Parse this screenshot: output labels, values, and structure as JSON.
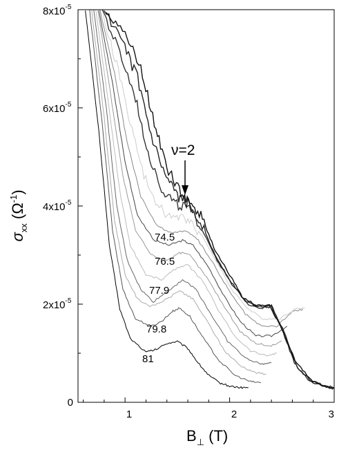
{
  "chart_data": {
    "type": "line",
    "xlabel": "B",
    "xlabel_sub": "⊥",
    "xlabel_unit": " (T)",
    "ylabel": "σ",
    "ylabel_sub": "xx",
    "ylabel_unit_open": " (Ω",
    "ylabel_unit_sup": "-1",
    "ylabel_unit_close": ")",
    "xlim": [
      0.55,
      3.0
    ],
    "ylim": [
      0,
      8e-05
    ],
    "x_ticks": [
      {
        "value": 1,
        "label": "1"
      },
      {
        "value": 2,
        "label": "2"
      },
      {
        "value": 3,
        "label": "3"
      }
    ],
    "y_ticks": [
      {
        "value": 0,
        "label": "0",
        "exp": ""
      },
      {
        "value": 2e-05,
        "label": "2x10",
        "exp": "-5"
      },
      {
        "value": 4e-05,
        "label": "4x10",
        "exp": "-5"
      },
      {
        "value": 6e-05,
        "label": "6x10",
        "exp": "-5"
      },
      {
        "value": 8e-05,
        "label": "8x10",
        "exp": "-5"
      }
    ],
    "annotation": {
      "text": "ν=2",
      "x": 1.55,
      "y": 4.1e-05
    },
    "curve_labels": [
      "74.5",
      "76.5",
      "77.9",
      "79.8",
      "81"
    ],
    "series": [
      {
        "label": "81",
        "color": "#000000",
        "points": [
          [
            0.62,
            8e-05
          ],
          [
            0.75,
            5.5e-05
          ],
          [
            0.85,
            3.2e-05
          ],
          [
            0.95,
            1.9e-05
          ],
          [
            1.05,
            1.3e-05
          ],
          [
            1.2,
            1.02e-05
          ],
          [
            1.3,
            1.08e-05
          ],
          [
            1.4,
            1.2e-05
          ],
          [
            1.5,
            1.24e-05
          ],
          [
            1.6,
            1.1e-05
          ],
          [
            1.7,
            8e-06
          ],
          [
            1.8,
            5.5e-06
          ],
          [
            1.9,
            4e-06
          ],
          [
            2.0,
            3.3e-06
          ],
          [
            2.1,
            3e-06
          ],
          [
            2.18,
            3e-06
          ]
        ]
      },
      {
        "label": "79.8",
        "color": "#555555",
        "points": [
          [
            0.66,
            8e-05
          ],
          [
            0.78,
            5.7e-05
          ],
          [
            0.88,
            3.5e-05
          ],
          [
            0.98,
            2.3e-05
          ],
          [
            1.1,
            1.7e-05
          ],
          [
            1.25,
            1.55e-05
          ],
          [
            1.35,
            1.65e-05
          ],
          [
            1.45,
            1.85e-05
          ],
          [
            1.52,
            1.92e-05
          ],
          [
            1.62,
            1.75e-05
          ],
          [
            1.75,
            1.3e-05
          ],
          [
            1.9,
            8.5e-06
          ],
          [
            2.05,
            5.5e-06
          ],
          [
            2.2,
            4.2e-06
          ],
          [
            2.3,
            4e-06
          ]
        ]
      },
      {
        "label": "",
        "color": "#aaaaaa",
        "points": [
          [
            0.68,
            8e-05
          ],
          [
            0.8,
            5.8e-05
          ],
          [
            0.9,
            3.7e-05
          ],
          [
            1.0,
            2.6e-05
          ],
          [
            1.12,
            2.1e-05
          ],
          [
            1.25,
            1.95e-05
          ],
          [
            1.4,
            2.1e-05
          ],
          [
            1.52,
            2.28e-05
          ],
          [
            1.65,
            2.1e-05
          ],
          [
            1.8,
            1.6e-05
          ],
          [
            1.95,
            1.05e-05
          ],
          [
            2.1,
            7.5e-06
          ],
          [
            2.25,
            6e-06
          ],
          [
            2.35,
            5.8e-06
          ]
        ]
      },
      {
        "label": "77.9",
        "color": "#666666",
        "points": [
          [
            0.7,
            8e-05
          ],
          [
            0.82,
            6e-05
          ],
          [
            0.92,
            4e-05
          ],
          [
            1.02,
            2.9e-05
          ],
          [
            1.15,
            2.3e-05
          ],
          [
            1.27,
            2.05e-05
          ],
          [
            1.4,
            2.25e-05
          ],
          [
            1.55,
            2.5e-05
          ],
          [
            1.68,
            2.3e-05
          ],
          [
            1.82,
            1.8e-05
          ],
          [
            1.98,
            1.25e-05
          ],
          [
            2.15,
            9e-06
          ],
          [
            2.3,
            7.8e-06
          ],
          [
            2.4,
            8e-06
          ]
        ]
      },
      {
        "label": "",
        "color": "#bbbbbb",
        "points": [
          [
            0.72,
            8e-05
          ],
          [
            0.84,
            6.1e-05
          ],
          [
            0.95,
            4.3e-05
          ],
          [
            1.05,
            3.2e-05
          ],
          [
            1.2,
            2.6e-05
          ],
          [
            1.35,
            2.5e-05
          ],
          [
            1.5,
            2.75e-05
          ],
          [
            1.6,
            2.8e-05
          ],
          [
            1.75,
            2.45e-05
          ],
          [
            1.9,
            1.85e-05
          ],
          [
            2.05,
            1.35e-05
          ],
          [
            2.2,
            1.05e-05
          ],
          [
            2.35,
            9.5e-06
          ],
          [
            2.45,
            1e-05
          ]
        ]
      },
      {
        "label": "76.5",
        "color": "#999999",
        "points": [
          [
            0.74,
            8e-05
          ],
          [
            0.86,
            6.3e-05
          ],
          [
            0.98,
            4.6e-05
          ],
          [
            1.1,
            3.5e-05
          ],
          [
            1.25,
            3e-05
          ],
          [
            1.4,
            2.9e-05
          ],
          [
            1.52,
            3.05e-05
          ],
          [
            1.62,
            3e-05
          ],
          [
            1.78,
            2.55e-05
          ],
          [
            1.95,
            1.95e-05
          ],
          [
            2.1,
            1.45e-05
          ],
          [
            2.25,
            1.2e-05
          ],
          [
            2.4,
            1.15e-05
          ],
          [
            2.5,
            1.25e-05
          ]
        ]
      },
      {
        "label": "",
        "color": "#444444",
        "points": [
          [
            0.75,
            8e-05
          ],
          [
            0.88,
            6.5e-05
          ],
          [
            1.0,
            4.9e-05
          ],
          [
            1.12,
            3.8e-05
          ],
          [
            1.28,
            3.3e-05
          ],
          [
            1.42,
            3.2e-05
          ],
          [
            1.55,
            3.3e-05
          ],
          [
            1.65,
            3.2e-05
          ],
          [
            1.8,
            2.75e-05
          ],
          [
            1.95,
            2.15e-05
          ],
          [
            2.1,
            1.65e-05
          ],
          [
            2.25,
            1.35e-05
          ],
          [
            2.4,
            1.35e-05
          ],
          [
            2.55,
            1.55e-05
          ]
        ]
      },
      {
        "label": "74.5",
        "color": "#888888",
        "points": [
          [
            0.76,
            8e-05
          ],
          [
            0.9,
            6.7e-05
          ],
          [
            1.02,
            5.3e-05
          ],
          [
            1.15,
            4.2e-05
          ],
          [
            1.3,
            3.6e-05
          ],
          [
            1.45,
            3.45e-05
          ],
          [
            1.58,
            3.5e-05
          ],
          [
            1.7,
            3.3e-05
          ],
          [
            1.85,
            2.8e-05
          ],
          [
            2.0,
            2.25e-05
          ],
          [
            2.15,
            1.8e-05
          ],
          [
            2.3,
            1.55e-05
          ],
          [
            2.45,
            1.55e-05
          ],
          [
            2.6,
            1.85e-05
          ],
          [
            2.7,
            1.9e-05
          ]
        ]
      },
      {
        "label": "",
        "color": "#cccccc",
        "points": [
          [
            0.77,
            8e-05
          ],
          [
            0.92,
            6.9e-05
          ],
          [
            1.05,
            5.7e-05
          ],
          [
            1.18,
            4.6e-05
          ],
          [
            1.33,
            3.95e-05
          ],
          [
            1.48,
            3.75e-05
          ],
          [
            1.6,
            3.75e-05
          ],
          [
            1.72,
            3.45e-05
          ],
          [
            1.88,
            2.85e-05
          ],
          [
            2.02,
            2.3e-05
          ],
          [
            2.18,
            1.9e-05
          ],
          [
            2.32,
            1.7e-05
          ],
          [
            2.48,
            1.7e-05
          ],
          [
            2.62,
            1.9e-05
          ],
          [
            2.72,
            1.92e-05
          ]
        ]
      },
      {
        "label": "",
        "color": "#333333",
        "points": [
          [
            0.78,
            8e-05
          ],
          [
            0.95,
            7.1e-05
          ],
          [
            1.1,
            6.2e-05
          ],
          [
            1.22,
            5.1e-05
          ],
          [
            1.35,
            4.35e-05
          ],
          [
            1.48,
            4.05e-05
          ],
          [
            1.6,
            3.95e-05
          ],
          [
            1.72,
            3.6e-05
          ],
          [
            1.88,
            2.9e-05
          ],
          [
            2.02,
            2.4e-05
          ],
          [
            2.18,
            2e-05
          ],
          [
            2.3,
            1.92e-05
          ],
          [
            2.4,
            1.95e-05
          ],
          [
            2.5,
            1.5e-05
          ],
          [
            2.62,
            8e-06
          ],
          [
            2.75,
            4.5e-06
          ],
          [
            2.9,
            3.5e-06
          ],
          [
            3.0,
            3e-06
          ]
        ]
      },
      {
        "label": "",
        "color": "#222222",
        "points": [
          [
            0.8,
            8e-05
          ],
          [
            0.98,
            7.3e-05
          ],
          [
            1.12,
            6.6e-05
          ],
          [
            1.25,
            5.4e-05
          ],
          [
            1.38,
            4.6e-05
          ],
          [
            1.5,
            4.2e-05
          ],
          [
            1.6,
            4.05e-05
          ],
          [
            1.72,
            3.7e-05
          ],
          [
            1.86,
            3e-05
          ],
          [
            2.0,
            2.5e-05
          ],
          [
            2.15,
            2.05e-05
          ],
          [
            2.28,
            1.95e-05
          ],
          [
            2.4,
            1.97e-05
          ],
          [
            2.52,
            1.45e-05
          ],
          [
            2.65,
            7e-06
          ],
          [
            2.8,
            4e-06
          ],
          [
            2.95,
            3e-06
          ],
          [
            3.0,
            2.8e-06
          ]
        ]
      },
      {
        "label": "",
        "color": "#111111",
        "points": [
          [
            0.82,
            8e-05
          ],
          [
            1.0,
            7.5e-05
          ],
          [
            1.15,
            6.8e-05
          ],
          [
            1.28,
            5.7e-05
          ],
          [
            1.4,
            4.8e-05
          ],
          [
            1.52,
            4.3e-05
          ],
          [
            1.62,
            4.1e-05
          ],
          [
            1.74,
            3.75e-05
          ],
          [
            1.86,
            3.1e-05
          ],
          [
            2.0,
            2.6e-05
          ],
          [
            2.12,
            2.15e-05
          ],
          [
            2.25,
            1.98e-05
          ],
          [
            2.38,
            1.98e-05
          ],
          [
            2.5,
            1.5e-05
          ],
          [
            2.62,
            8.5e-06
          ],
          [
            2.78,
            4.5e-06
          ],
          [
            2.92,
            3.2e-06
          ],
          [
            3.0,
            2.8e-06
          ]
        ]
      }
    ]
  }
}
